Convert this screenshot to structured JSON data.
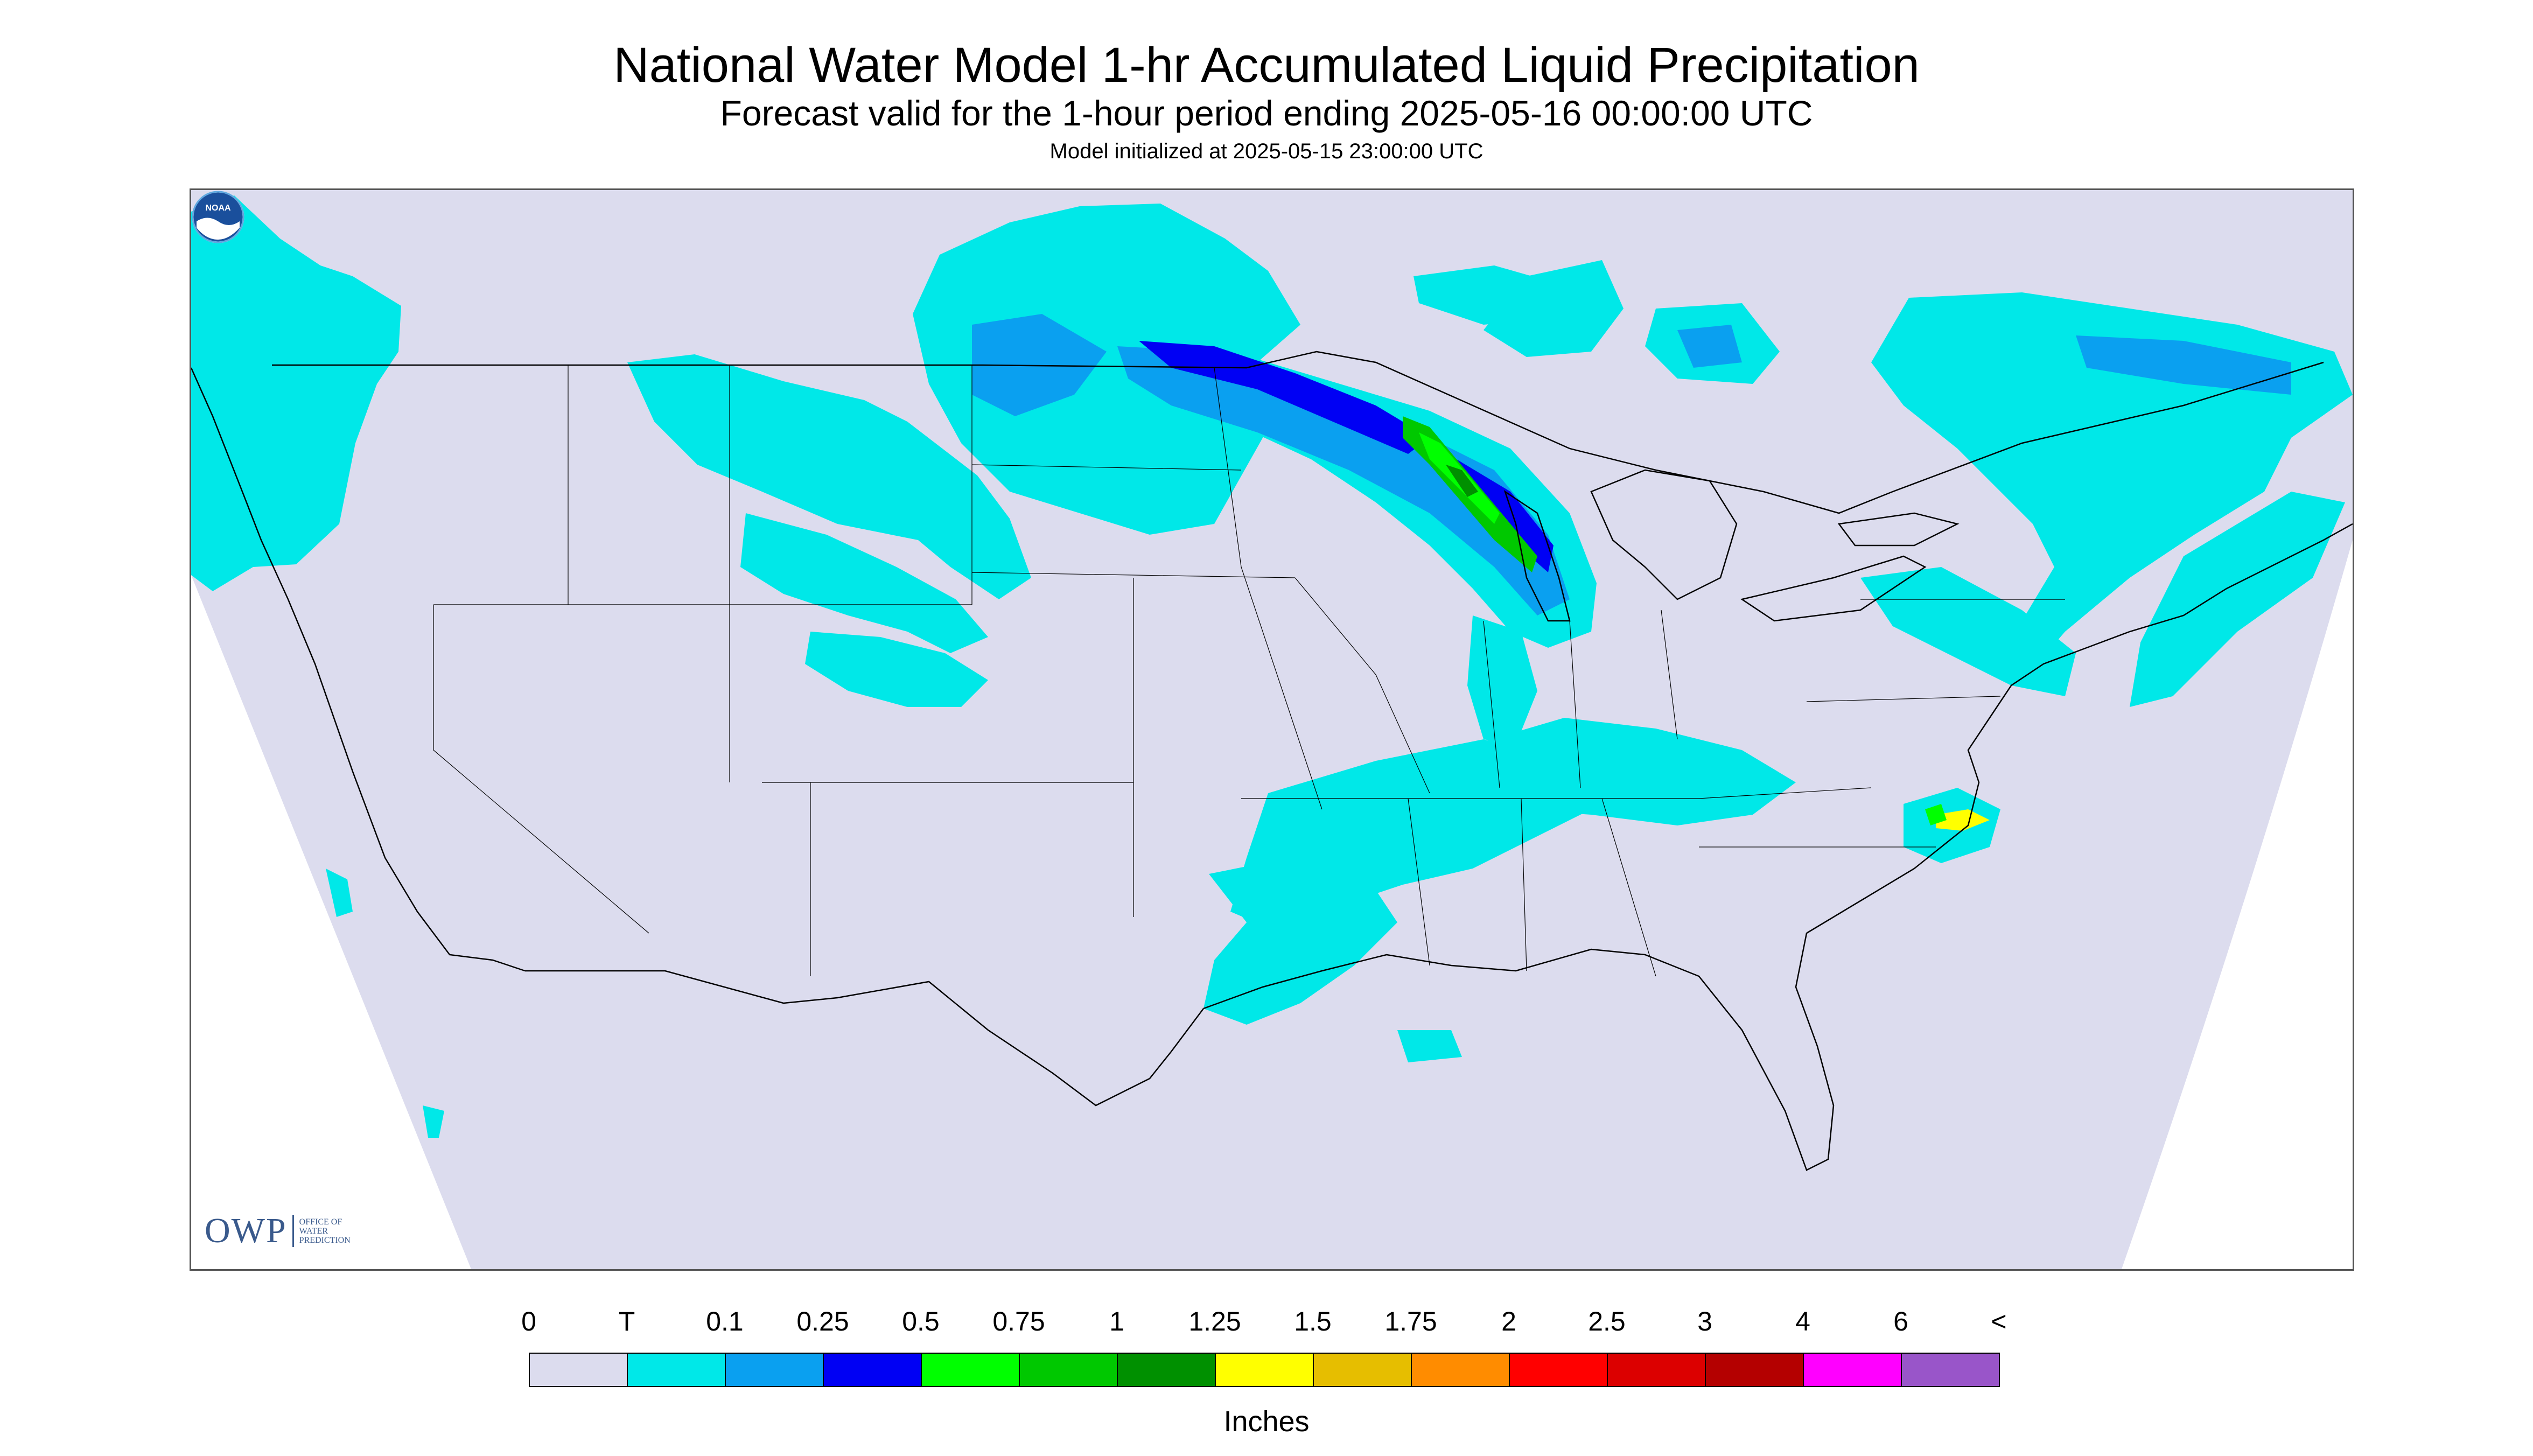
{
  "header": {
    "title": "National Water Model 1-hr Accumulated Liquid Precipitation",
    "subtitle": "Forecast valid for the 1-hour period ending 2025-05-16 00:00:00 UTC",
    "init_line": "Model initialized at 2025-05-15 23:00:00 UTC"
  },
  "map": {
    "region": "CONUS",
    "background_color": "#dcdcee",
    "land_line_color": "#000000",
    "precip_bands": [
      {
        "area": "Pacific Northwest",
        "level": "T"
      },
      {
        "area": "Northern Rockies / Plains",
        "level": "T"
      },
      {
        "area": "Southern Canada / North Dakota",
        "level": "T"
      },
      {
        "area": "Minnesota / Wisconsin / Lake Michigan",
        "level": "0.75"
      },
      {
        "area": "Ohio Valley / Tennessee",
        "level": "T"
      },
      {
        "area": "Texas / Oklahoma",
        "level": "T"
      },
      {
        "area": "Northeast / New England",
        "level": "0.1"
      },
      {
        "area": "Eastern North Carolina",
        "level": "1.5"
      }
    ]
  },
  "logos": {
    "owp_letters": "OWP",
    "owp_line1": "OFFICE OF",
    "owp_line2": "WATER",
    "owp_line3": "PREDICTION",
    "noaa_text": "NOAA"
  },
  "legend": {
    "tick_labels": [
      "0",
      "T",
      "0.1",
      "0.25",
      "0.5",
      "0.75",
      "1",
      "1.25",
      "1.5",
      "1.75",
      "2",
      "2.5",
      "3",
      "4",
      "6",
      "<"
    ],
    "colors": [
      "#dcdcee",
      "#00e8e8",
      "#0aa0f0",
      "#0000f4",
      "#00ff00",
      "#00c800",
      "#009000",
      "#ffff00",
      "#e6be00",
      "#ff8c00",
      "#ff0000",
      "#dc0000",
      "#b40000",
      "#ff00ff",
      "#9955c9"
    ],
    "units": "Inches"
  }
}
